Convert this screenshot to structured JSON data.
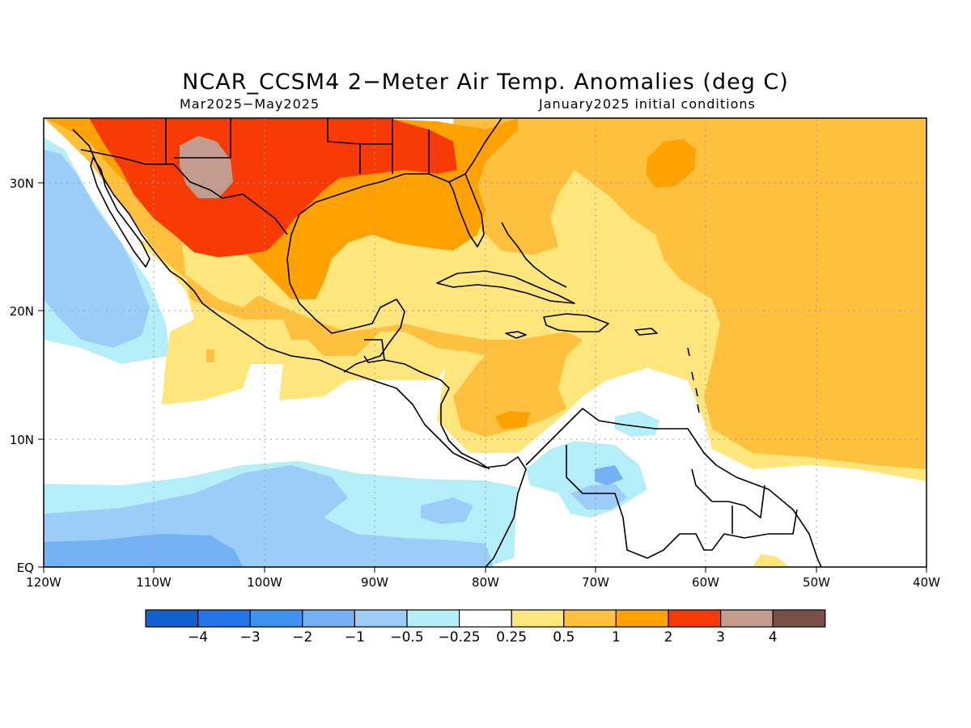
{
  "title": "NCAR_CCSM4 2−Meter Air Temp. Anomalies (deg C)",
  "period": "Mar2025−May2025",
  "initial_conditions": "January2025 initial conditions",
  "axes": {
    "lat_ticks": [
      "EQ",
      "10N",
      "20N",
      "30N"
    ],
    "lon_ticks": [
      "120W",
      "110W",
      "100W",
      "90W",
      "80W",
      "70W",
      "60W",
      "50W",
      "40W"
    ]
  },
  "colorbar": {
    "colors": [
      "#1560d0",
      "#2475ea",
      "#3d92f2",
      "#74b0f4",
      "#9ccdf8",
      "#b4eef8",
      "#ffffff",
      "#fee57c",
      "#ffc03e",
      "#ffa100",
      "#f83b05",
      "#c49c8f",
      "#7a4f45"
    ],
    "labels": [
      "−4",
      "−3",
      "−2",
      "−1",
      "−0.5",
      "−0.25",
      "0.25",
      "0.5",
      "1",
      "2",
      "3",
      "4"
    ]
  }
}
